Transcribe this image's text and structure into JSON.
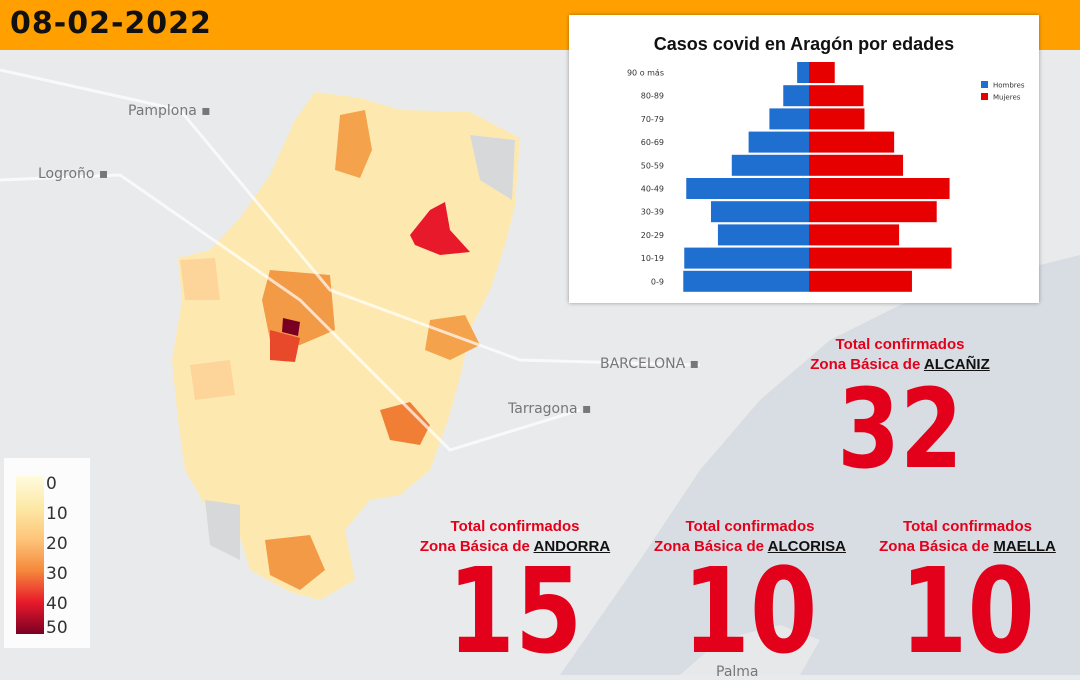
{
  "header": {
    "date": "08-02-2022",
    "color": "#ffa000"
  },
  "map": {
    "cities": [
      {
        "name": "Pamplona"
      },
      {
        "name": "Logroño"
      },
      {
        "name": "BARCELONA"
      },
      {
        "name": "Tarragona"
      },
      {
        "name": "Palma"
      }
    ],
    "legend": {
      "ticks": [
        "0",
        "10",
        "20",
        "30",
        "40",
        "50"
      ]
    }
  },
  "chart_data": {
    "type": "bar",
    "orientation": "horizontal",
    "title": "Casos covid en Aragón por edades",
    "categories": [
      "90 o más",
      "80-89",
      "70-79",
      "60-69",
      "50-59",
      "40-49",
      "30-39",
      "20-29",
      "10-19",
      "0-9"
    ],
    "series": [
      {
        "name": "Hombres",
        "color": "#1f6fd0",
        "values": [
          12,
          26,
          40,
          61,
          78,
          124,
          99,
          92,
          126,
          127
        ]
      },
      {
        "name": "Mujeres",
        "color": "#e60000",
        "values": [
          26,
          55,
          56,
          86,
          95,
          142,
          129,
          91,
          144,
          104
        ]
      }
    ],
    "legend": "top-right",
    "grid": false
  },
  "zones": [
    {
      "line1": "Total confirmados",
      "prefix": "Zona Básica de",
      "name": "ALCAÑIZ",
      "value": 32
    },
    {
      "line1": "Total confirmados",
      "prefix": "Zona Básica de",
      "name": "ANDORRA",
      "value": 15
    },
    {
      "line1": "Total confirmados",
      "prefix": "Zona Básica de",
      "name": "ALCORISA",
      "value": 10
    },
    {
      "line1": "Total confirmados",
      "prefix": "Zona Básica de",
      "name": "MAELLA",
      "value": 10
    }
  ]
}
